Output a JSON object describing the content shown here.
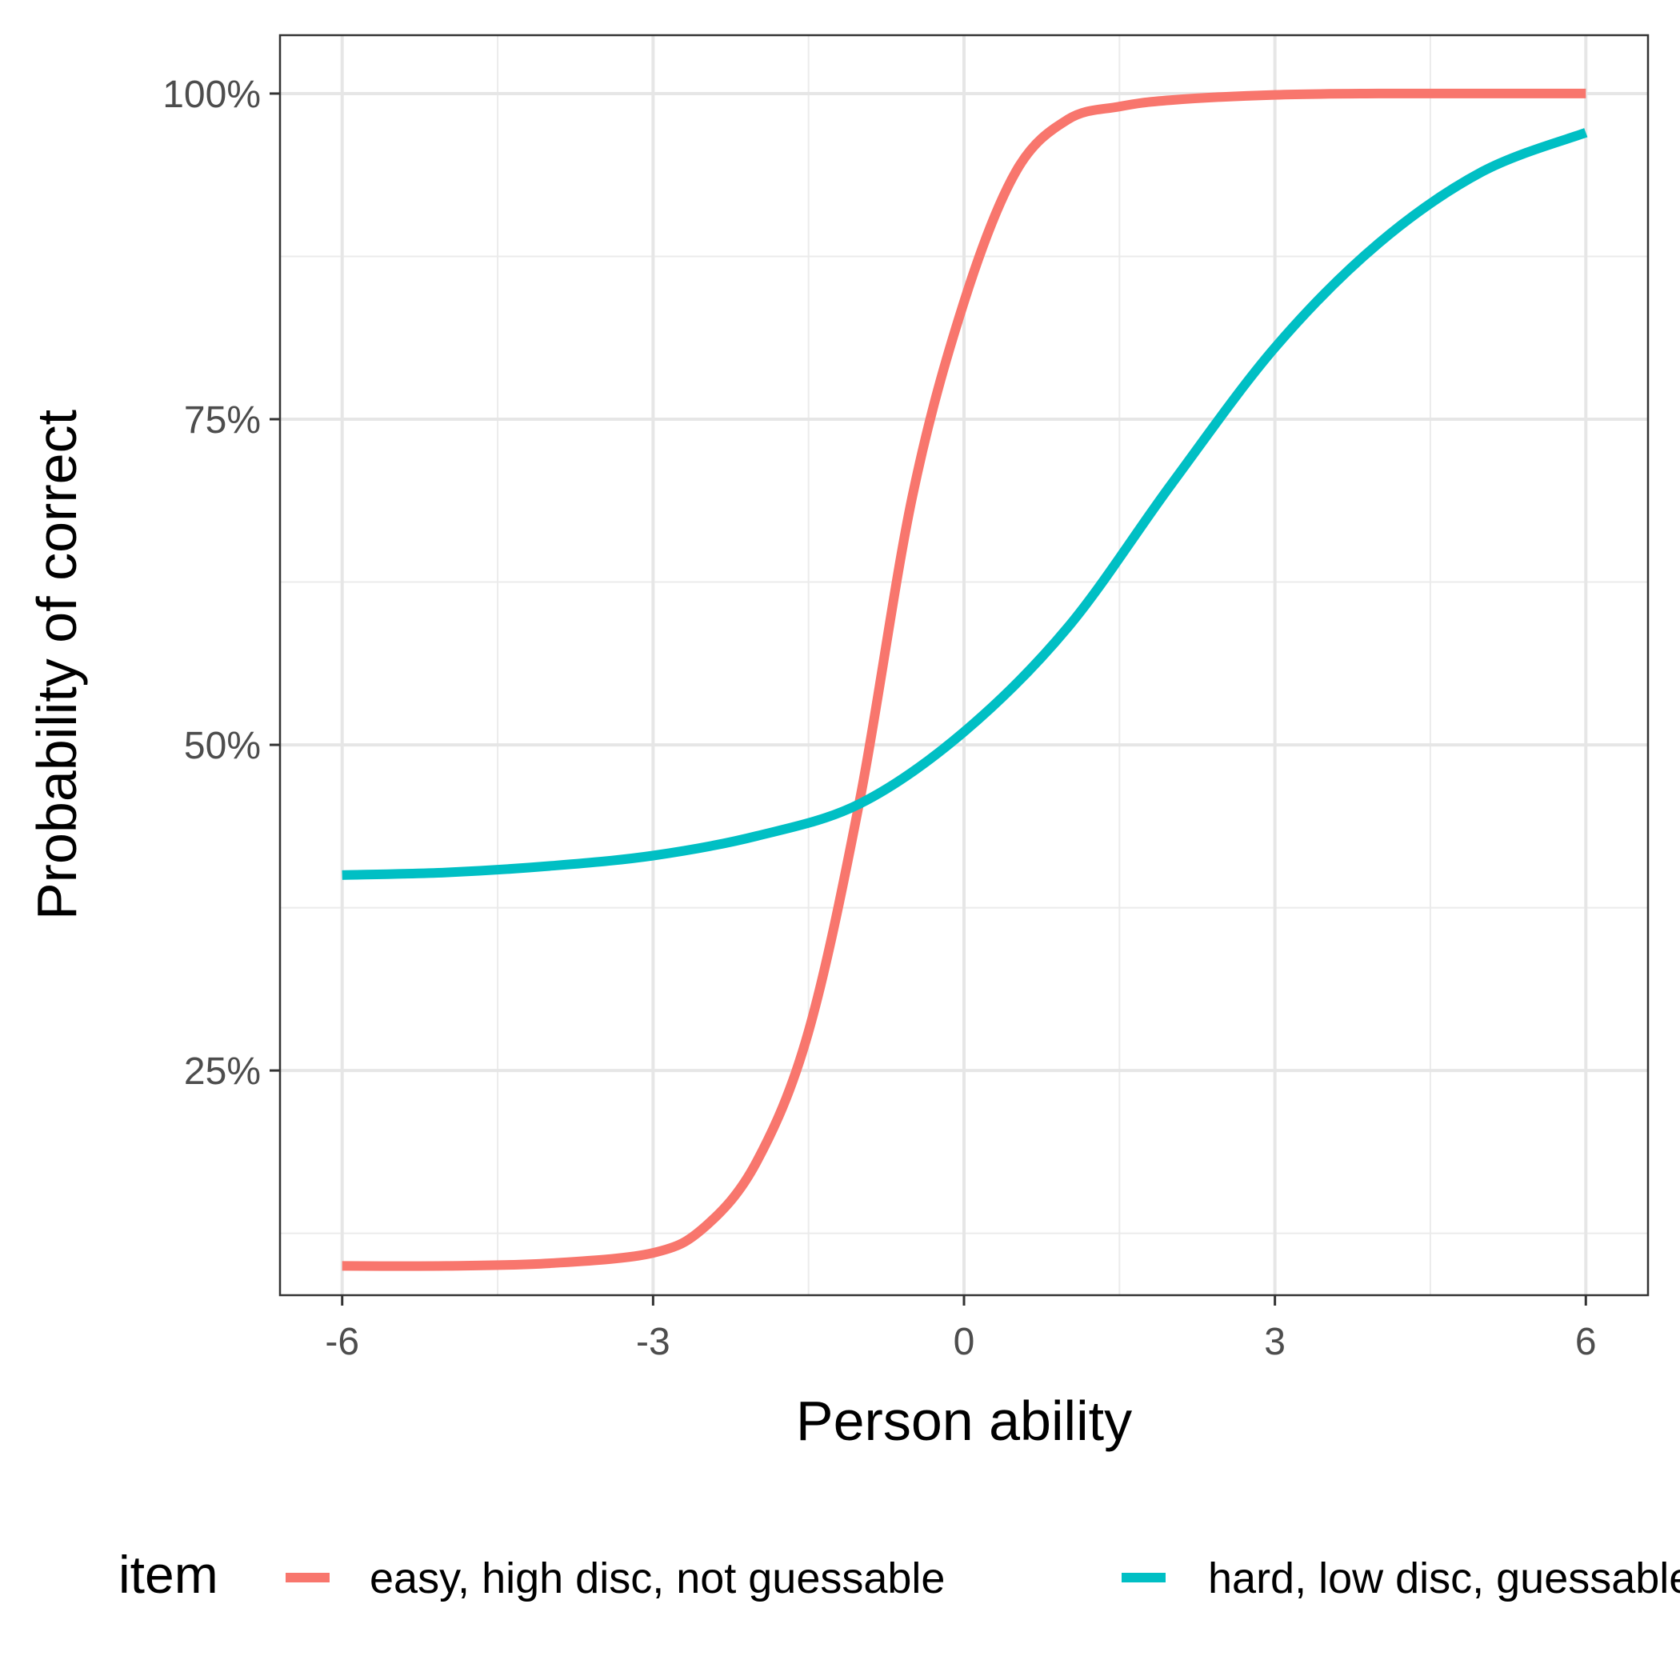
{
  "chart_data": {
    "type": "line",
    "xlabel": "Person ability",
    "ylabel": "Probability of correct",
    "xlim": [
      -6,
      6
    ],
    "ylim": [
      0,
      1
    ],
    "x_ticks": [
      -6,
      -3,
      0,
      3,
      6
    ],
    "x_tick_labels": [
      "-6",
      "-3",
      "0",
      "3",
      "6"
    ],
    "y_ticks": [
      0.25,
      0.5,
      0.75,
      1.0
    ],
    "y_tick_labels": [
      "25%",
      "50%",
      "75%",
      "100%"
    ],
    "grid": true,
    "legend": {
      "title": "item",
      "position": "bottom"
    },
    "series": [
      {
        "name": "easy, high disc, not guessable",
        "color": "#f8766d",
        "x": [
          -6,
          -5,
          -4,
          -3,
          -2.5,
          -2,
          -1.5,
          -1,
          -0.5,
          0,
          0.5,
          1,
          1.5,
          2,
          3,
          4,
          5,
          6
        ],
        "y": [
          0.1,
          0.1,
          0.102,
          0.11,
          0.13,
          0.18,
          0.28,
          0.46,
          0.69,
          0.84,
          0.94,
          0.98,
          0.99,
          0.995,
          0.999,
          1.0,
          1.0,
          1.0
        ]
      },
      {
        "name": "hard, low disc, guessable",
        "color": "#00bfc4",
        "x": [
          -6,
          -5,
          -4,
          -3,
          -2,
          -1,
          0,
          1,
          2,
          3,
          4,
          5,
          6
        ],
        "y": [
          0.4,
          0.402,
          0.407,
          0.415,
          0.43,
          0.455,
          0.51,
          0.59,
          0.7,
          0.805,
          0.885,
          0.94,
          0.97
        ]
      }
    ]
  }
}
